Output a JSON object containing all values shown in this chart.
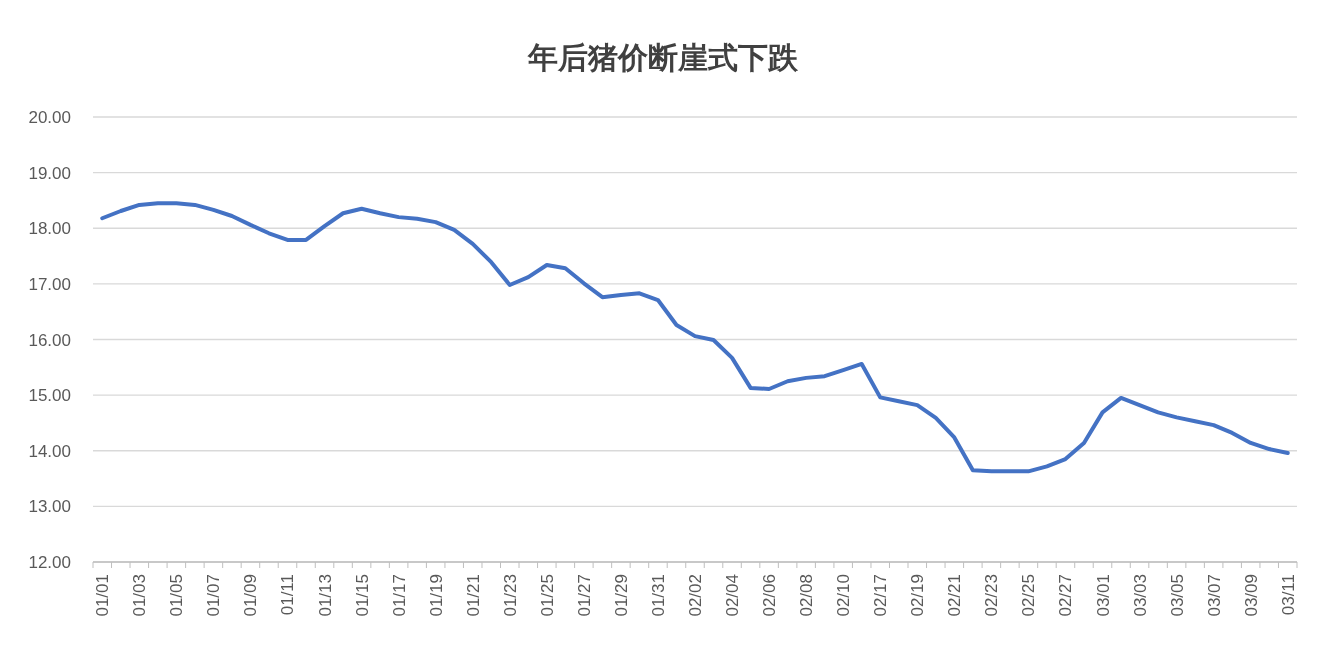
{
  "chart_data": {
    "type": "line",
    "title": "年后猪价断崖式下跌",
    "categories": [
      "01/01",
      null,
      "01/03",
      null,
      "01/05",
      null,
      "01/07",
      null,
      "01/09",
      null,
      "01/11",
      null,
      "01/13",
      null,
      "01/15",
      null,
      "01/17",
      null,
      "01/19",
      null,
      "01/21",
      null,
      "01/23",
      null,
      "01/25",
      null,
      "01/27",
      null,
      "01/29",
      null,
      "01/31",
      null,
      "02/02",
      null,
      "02/04",
      null,
      "02/06",
      null,
      "02/08",
      null,
      "02/10",
      null,
      "02/17",
      null,
      "02/19",
      null,
      "02/21",
      null,
      "02/23",
      null,
      "02/25",
      null,
      "02/27",
      null,
      "03/01",
      null,
      "03/03",
      null,
      "03/05",
      null,
      "03/07",
      null,
      "03/09",
      null,
      "03/11"
    ],
    "series": [
      {
        "color": "#4472c4",
        "values": [
          18.18,
          18.31,
          18.42,
          18.45,
          18.45,
          18.42,
          18.33,
          18.22,
          18.06,
          17.91,
          17.79,
          17.79,
          18.04,
          18.27,
          18.35,
          18.27,
          18.2,
          18.17,
          18.11,
          17.97,
          17.72,
          17.39,
          16.98,
          17.12,
          17.34,
          17.28,
          17.01,
          16.76,
          16.8,
          16.83,
          16.71,
          16.26,
          16.06,
          15.99,
          15.67,
          15.13,
          15.11,
          15.25,
          15.31,
          15.34,
          15.45,
          15.56,
          14.96,
          14.89,
          14.82,
          14.59,
          14.24,
          13.65,
          13.63,
          13.63,
          13.63,
          13.72,
          13.85,
          14.14,
          14.69,
          14.95,
          14.82,
          14.69,
          14.6,
          14.53,
          14.46,
          14.32,
          14.14,
          14.03,
          13.96
        ]
      }
    ],
    "ylim": [
      12,
      20
    ],
    "yticks": [
      {
        "value": 12,
        "label": "12.00"
      },
      {
        "value": 13,
        "label": "13.00"
      },
      {
        "value": 14,
        "label": "14.00"
      },
      {
        "value": 15,
        "label": "15.00"
      },
      {
        "value": 16,
        "label": "16.00"
      },
      {
        "value": 17,
        "label": "17.00"
      },
      {
        "value": 18,
        "label": "18.00"
      },
      {
        "value": 19,
        "label": "19.00"
      },
      {
        "value": 20,
        "label": "20.00"
      }
    ],
    "grid": "y",
    "marker": "none",
    "line_style": "solid"
  }
}
